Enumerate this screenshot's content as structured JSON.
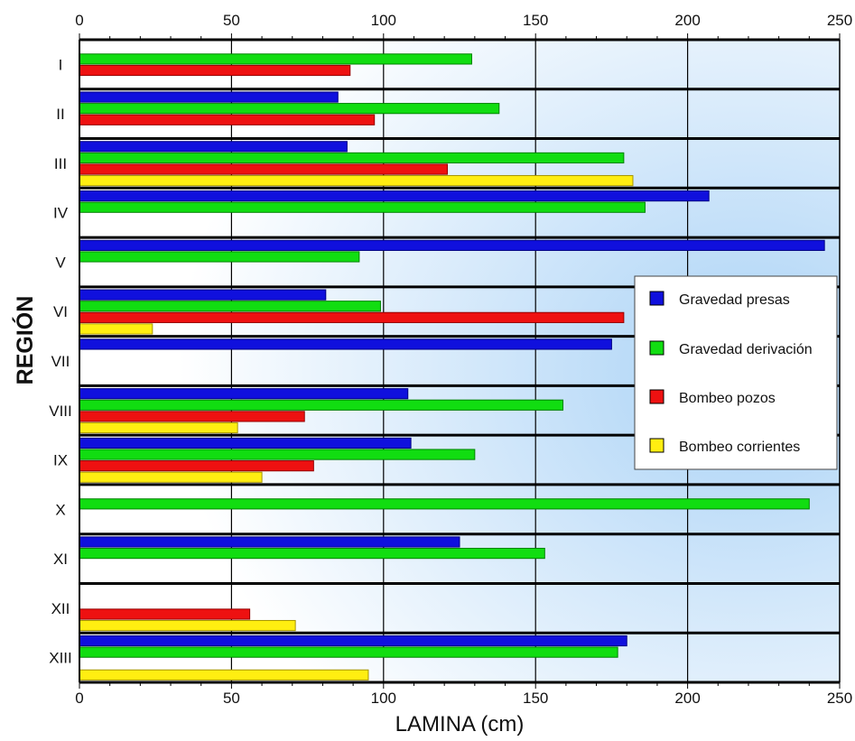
{
  "chart_data": {
    "type": "bar",
    "orientation": "horizontal",
    "xlabel": "LAMINA (cm)",
    "ylabel": "REGIÓN",
    "xlim": [
      0,
      250
    ],
    "xticks": [
      "0",
      "50",
      "100",
      "150",
      "200",
      "250"
    ],
    "grid": true,
    "legend_position": "right",
    "categories": [
      "I",
      "II",
      "III",
      "IV",
      "V",
      "VI",
      "VII",
      "VIII",
      "IX",
      "X",
      "XI",
      "XII",
      "XIII"
    ],
    "series": [
      {
        "name": "Gravedad presas",
        "color": "#1010dd",
        "values": [
          null,
          85,
          88,
          207,
          245,
          81,
          175,
          108,
          109,
          null,
          125,
          null,
          180
        ]
      },
      {
        "name": "Gravedad derivación",
        "color": "#11dd11",
        "values": [
          129,
          138,
          179,
          186,
          92,
          99,
          null,
          159,
          130,
          240,
          153,
          null,
          177
        ]
      },
      {
        "name": "Bombeo pozos",
        "color": "#ee1111",
        "values": [
          89,
          97,
          121,
          null,
          null,
          179,
          null,
          74,
          77,
          null,
          null,
          56,
          null
        ]
      },
      {
        "name": "Bombeo corrientes",
        "color": "#ffee11",
        "values": [
          null,
          null,
          182,
          null,
          null,
          24,
          null,
          52,
          60,
          null,
          null,
          71,
          95
        ]
      }
    ]
  }
}
